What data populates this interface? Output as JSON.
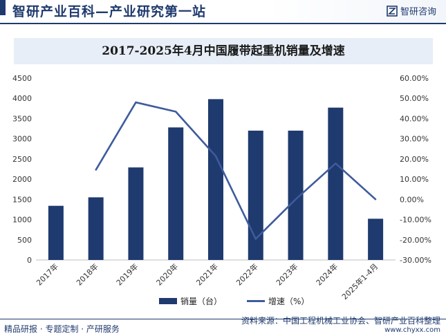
{
  "header": {
    "site_title": "智研产业百科—产业研究第一站",
    "brand_name": "智研咨询",
    "brand_icon": "zhiyan-logo-icon"
  },
  "chart_data": {
    "type": "bar",
    "title": "2017-2025年4月中国履带起重机销量及增速",
    "categories": [
      "2017年",
      "2018年",
      "2019年",
      "2020年",
      "2021年",
      "2022年",
      "2023年",
      "2024年",
      "2025年1-4月"
    ],
    "series": [
      {
        "name": "销量（台）",
        "type": "bar",
        "axis": "left",
        "values": [
          1340,
          1550,
          2290,
          3280,
          3980,
          3200,
          3200,
          3770,
          1020
        ],
        "color": "#1f3a6e"
      },
      {
        "name": "增速（%）",
        "type": "line",
        "axis": "right",
        "values": [
          null,
          14.6,
          48.0,
          43.4,
          21.4,
          -19.6,
          0.0,
          17.8,
          0.0
        ],
        "color": "#3e5b9c"
      }
    ],
    "y_left": {
      "ylim": [
        0,
        4500
      ],
      "ticks": [
        "0",
        "500",
        "1000",
        "1500",
        "2000",
        "2500",
        "3000",
        "3500",
        "4000",
        "4500"
      ]
    },
    "y_right": {
      "ylim": [
        -30,
        60
      ],
      "ticks": [
        "-30.00%",
        "-20.00%",
        "-10.00%",
        "0.00%",
        "10.00%",
        "20.00%",
        "30.00%",
        "40.00%",
        "50.00%",
        "60.00%"
      ]
    },
    "grid": false,
    "legend_position": "bottom"
  },
  "footer": {
    "left_text": "精品研报 · 专题定制 · 产研服务",
    "source_text": "资料来源：中国工程机械工业协会、智研产业百科整理",
    "url_text": "www.chyxx.com"
  }
}
